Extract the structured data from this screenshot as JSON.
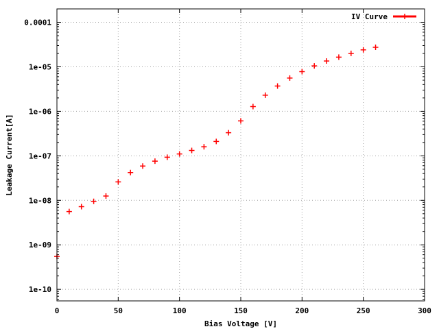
{
  "chart_data": {
    "type": "scatter",
    "title": "",
    "xlabel": "Bias Voltage [V]",
    "ylabel": "Leakage Current[A]",
    "xlim": [
      0,
      300
    ],
    "ylim": [
      5.5e-11,
      0.0002
    ],
    "y_scale": "log",
    "grid": true,
    "legend_position": "top-right",
    "x_ticks": [
      0,
      50,
      100,
      150,
      200,
      250,
      300
    ],
    "x_tick_labels": [
      "0",
      "50",
      "100",
      "150",
      "200",
      "250",
      "300"
    ],
    "y_ticks": [
      1e-10,
      1e-09,
      1e-08,
      1e-07,
      1e-06,
      1e-05,
      0.0001
    ],
    "y_tick_labels": [
      "1e-10",
      "1e-09",
      "1e-08",
      "1e-07",
      "1e-06",
      "1e-05",
      "0.0001"
    ],
    "series": [
      {
        "name": "IV Curve",
        "color": "#ff0000",
        "x": [
          0,
          10,
          20,
          30,
          40,
          50,
          60,
          70,
          80,
          90,
          100,
          110,
          120,
          130,
          140,
          150,
          160,
          170,
          180,
          190,
          200,
          210,
          220,
          230,
          240,
          250,
          260
        ],
        "y": [
          5.5e-10,
          5.6e-09,
          7.2e-09,
          9.5e-09,
          1.25e-08,
          2.6e-08,
          4.2e-08,
          5.9e-08,
          7.6e-08,
          9.3e-08,
          1.1e-07,
          1.32e-07,
          1.6e-07,
          2.1e-07,
          3.3e-07,
          6.1e-07,
          1.28e-06,
          2.3e-06,
          3.7e-06,
          5.6e-06,
          7.8e-06,
          1.05e-05,
          1.35e-05,
          1.65e-05,
          2e-05,
          2.4e-05,
          2.75e-05
        ]
      }
    ]
  }
}
